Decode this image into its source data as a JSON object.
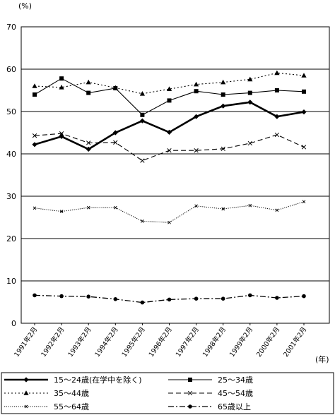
{
  "chart_data": {
    "type": "line",
    "ylabel_unit": "(%)",
    "xlabel_unit": "(年)",
    "ylim": [
      0,
      70
    ],
    "yticks": [
      0,
      10,
      20,
      30,
      40,
      50,
      60,
      70
    ],
    "grid": "horizontal",
    "legend_position": "bottom",
    "categories": [
      "1991年2月",
      "1992年2月",
      "1993年2月",
      "1994年2月",
      "1995年2月",
      "1996年2月",
      "1997年2月",
      "1998年2月",
      "1999年2月",
      "2000年2月",
      "2001年2月"
    ],
    "series": [
      {
        "name": "15～24歳(在学中を除く)",
        "style": "thick-solid",
        "marker": "diamond",
        "values": [
          42.2,
          44.1,
          41.1,
          45.0,
          47.8,
          45.1,
          48.8,
          51.3,
          52.2,
          48.8,
          49.9
        ]
      },
      {
        "name": "25～34歳",
        "style": "solid",
        "marker": "square",
        "values": [
          54.0,
          57.8,
          54.4,
          55.5,
          49.2,
          52.6,
          54.8,
          54.0,
          54.4,
          55.0,
          54.7
        ]
      },
      {
        "name": "35～44歳",
        "style": "dotted",
        "marker": "triangle",
        "values": [
          56.0,
          55.7,
          56.9,
          55.6,
          54.2,
          55.3,
          56.4,
          56.9,
          57.6,
          59.1,
          58.5
        ]
      },
      {
        "name": "45～54歳",
        "style": "dashed",
        "marker": "x",
        "values": [
          44.3,
          44.8,
          42.6,
          42.7,
          38.4,
          40.8,
          40.8,
          41.2,
          42.5,
          44.5,
          41.6
        ]
      },
      {
        "name": "55～64歳",
        "style": "fine-dotted",
        "marker": "x-small",
        "values": [
          27.2,
          26.4,
          27.3,
          27.3,
          24.1,
          23.8,
          27.7,
          27.0,
          27.8,
          26.7,
          28.7
        ]
      },
      {
        "name": "65歳以上",
        "style": "dash-dot",
        "marker": "circle",
        "values": [
          6.6,
          6.4,
          6.3,
          5.7,
          4.9,
          5.6,
          5.8,
          5.8,
          6.6,
          6.0,
          6.4
        ]
      }
    ]
  }
}
